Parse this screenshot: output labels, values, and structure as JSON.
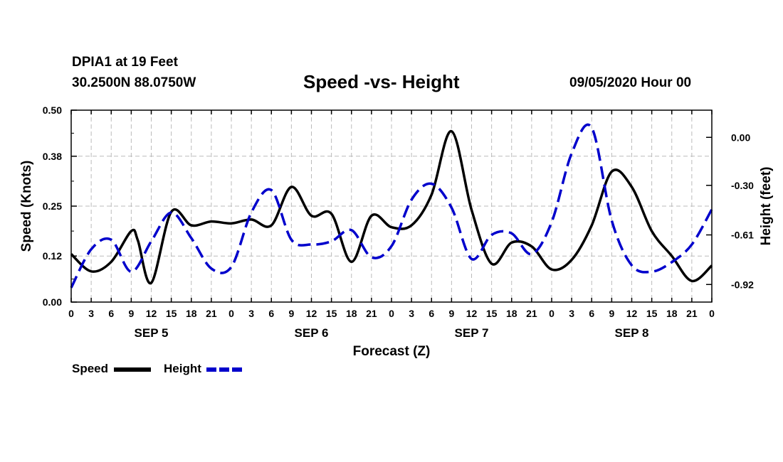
{
  "header": {
    "station": "DPIA1 at 19 Feet",
    "coords": "30.2500N 88.0750W",
    "title": "Speed -vs- Height",
    "datetime": "09/05/2020 Hour 00"
  },
  "legend": {
    "speed_label": "Speed",
    "height_label": "Height"
  },
  "colors": {
    "speed": "#000000",
    "height": "#0000cc",
    "grid": "#bbbbbb"
  },
  "chart_data": {
    "type": "line",
    "title": "Speed -vs- Height",
    "xlabel": "Forecast (Z)",
    "ylabel": "Speed (Knots)",
    "y2label": "Height (feet)",
    "xlim": [
      0,
      96
    ],
    "ylim": [
      0,
      0.5
    ],
    "y2lim": [
      -1.03,
      0.17
    ],
    "x_ticks": [
      0,
      3,
      6,
      9,
      12,
      15,
      18,
      21,
      24,
      27,
      30,
      33,
      36,
      39,
      42,
      45,
      48,
      51,
      54,
      57,
      60,
      63,
      66,
      69,
      72,
      75,
      78,
      81,
      84,
      87,
      90,
      93,
      96
    ],
    "x_tick_labels": [
      "0",
      "3",
      "6",
      "9",
      "12",
      "15",
      "18",
      "21",
      "0",
      "3",
      "6",
      "9",
      "12",
      "15",
      "18",
      "21",
      "0",
      "3",
      "6",
      "9",
      "12",
      "15",
      "18",
      "21",
      "0",
      "3",
      "6",
      "9",
      "12",
      "15",
      "18",
      "21",
      "0"
    ],
    "day_labels": [
      {
        "x": 12,
        "label": "SEP 5"
      },
      {
        "x": 36,
        "label": "SEP 6"
      },
      {
        "x": 60,
        "label": "SEP 7"
      },
      {
        "x": 84,
        "label": "SEP 8"
      }
    ],
    "y_ticks": [
      0.0,
      0.12,
      0.25,
      0.38,
      0.5
    ],
    "y_tick_labels": [
      "0.00",
      "0.12",
      "0.25",
      "0.38",
      "0.50"
    ],
    "y2_ticks": [
      0.0,
      -0.3,
      -0.61,
      -0.92
    ],
    "y2_tick_labels": [
      "0.00",
      "-0.30",
      "-0.61",
      "-0.92"
    ],
    "grid": true,
    "legend_position": "bottom-left",
    "series": [
      {
        "name": "Speed",
        "axis": "left",
        "style": "solid",
        "x": [
          0,
          3,
          6,
          9,
          10,
          12,
          15,
          18,
          21,
          24,
          27,
          30,
          33,
          36,
          39,
          42,
          45,
          48,
          51,
          54,
          57,
          60,
          63,
          66,
          69,
          72,
          75,
          78,
          81,
          84,
          87,
          90,
          93,
          96
        ],
        "values": [
          0.125,
          0.08,
          0.105,
          0.185,
          0.16,
          0.05,
          0.235,
          0.2,
          0.21,
          0.205,
          0.215,
          0.2,
          0.3,
          0.225,
          0.23,
          0.105,
          0.225,
          0.195,
          0.2,
          0.28,
          0.445,
          0.24,
          0.1,
          0.155,
          0.145,
          0.085,
          0.11,
          0.2,
          0.34,
          0.3,
          0.185,
          0.12,
          0.055,
          0.095
        ]
      },
      {
        "name": "Height",
        "axis": "right",
        "style": "dashed",
        "x": [
          0,
          3,
          6,
          9,
          12,
          15,
          18,
          21,
          24,
          27,
          30,
          33,
          36,
          39,
          42,
          45,
          48,
          51,
          54,
          57,
          60,
          63,
          66,
          69,
          72,
          75,
          78,
          81,
          84,
          87,
          90,
          93,
          96
        ],
        "values": [
          -0.94,
          -0.7,
          -0.64,
          -0.84,
          -0.65,
          -0.47,
          -0.63,
          -0.82,
          -0.81,
          -0.47,
          -0.33,
          -0.64,
          -0.67,
          -0.65,
          -0.58,
          -0.75,
          -0.68,
          -0.39,
          -0.29,
          -0.44,
          -0.76,
          -0.61,
          -0.6,
          -0.73,
          -0.53,
          -0.1,
          0.06,
          -0.52,
          -0.8,
          -0.84,
          -0.78,
          -0.67,
          -0.45
        ]
      }
    ]
  }
}
